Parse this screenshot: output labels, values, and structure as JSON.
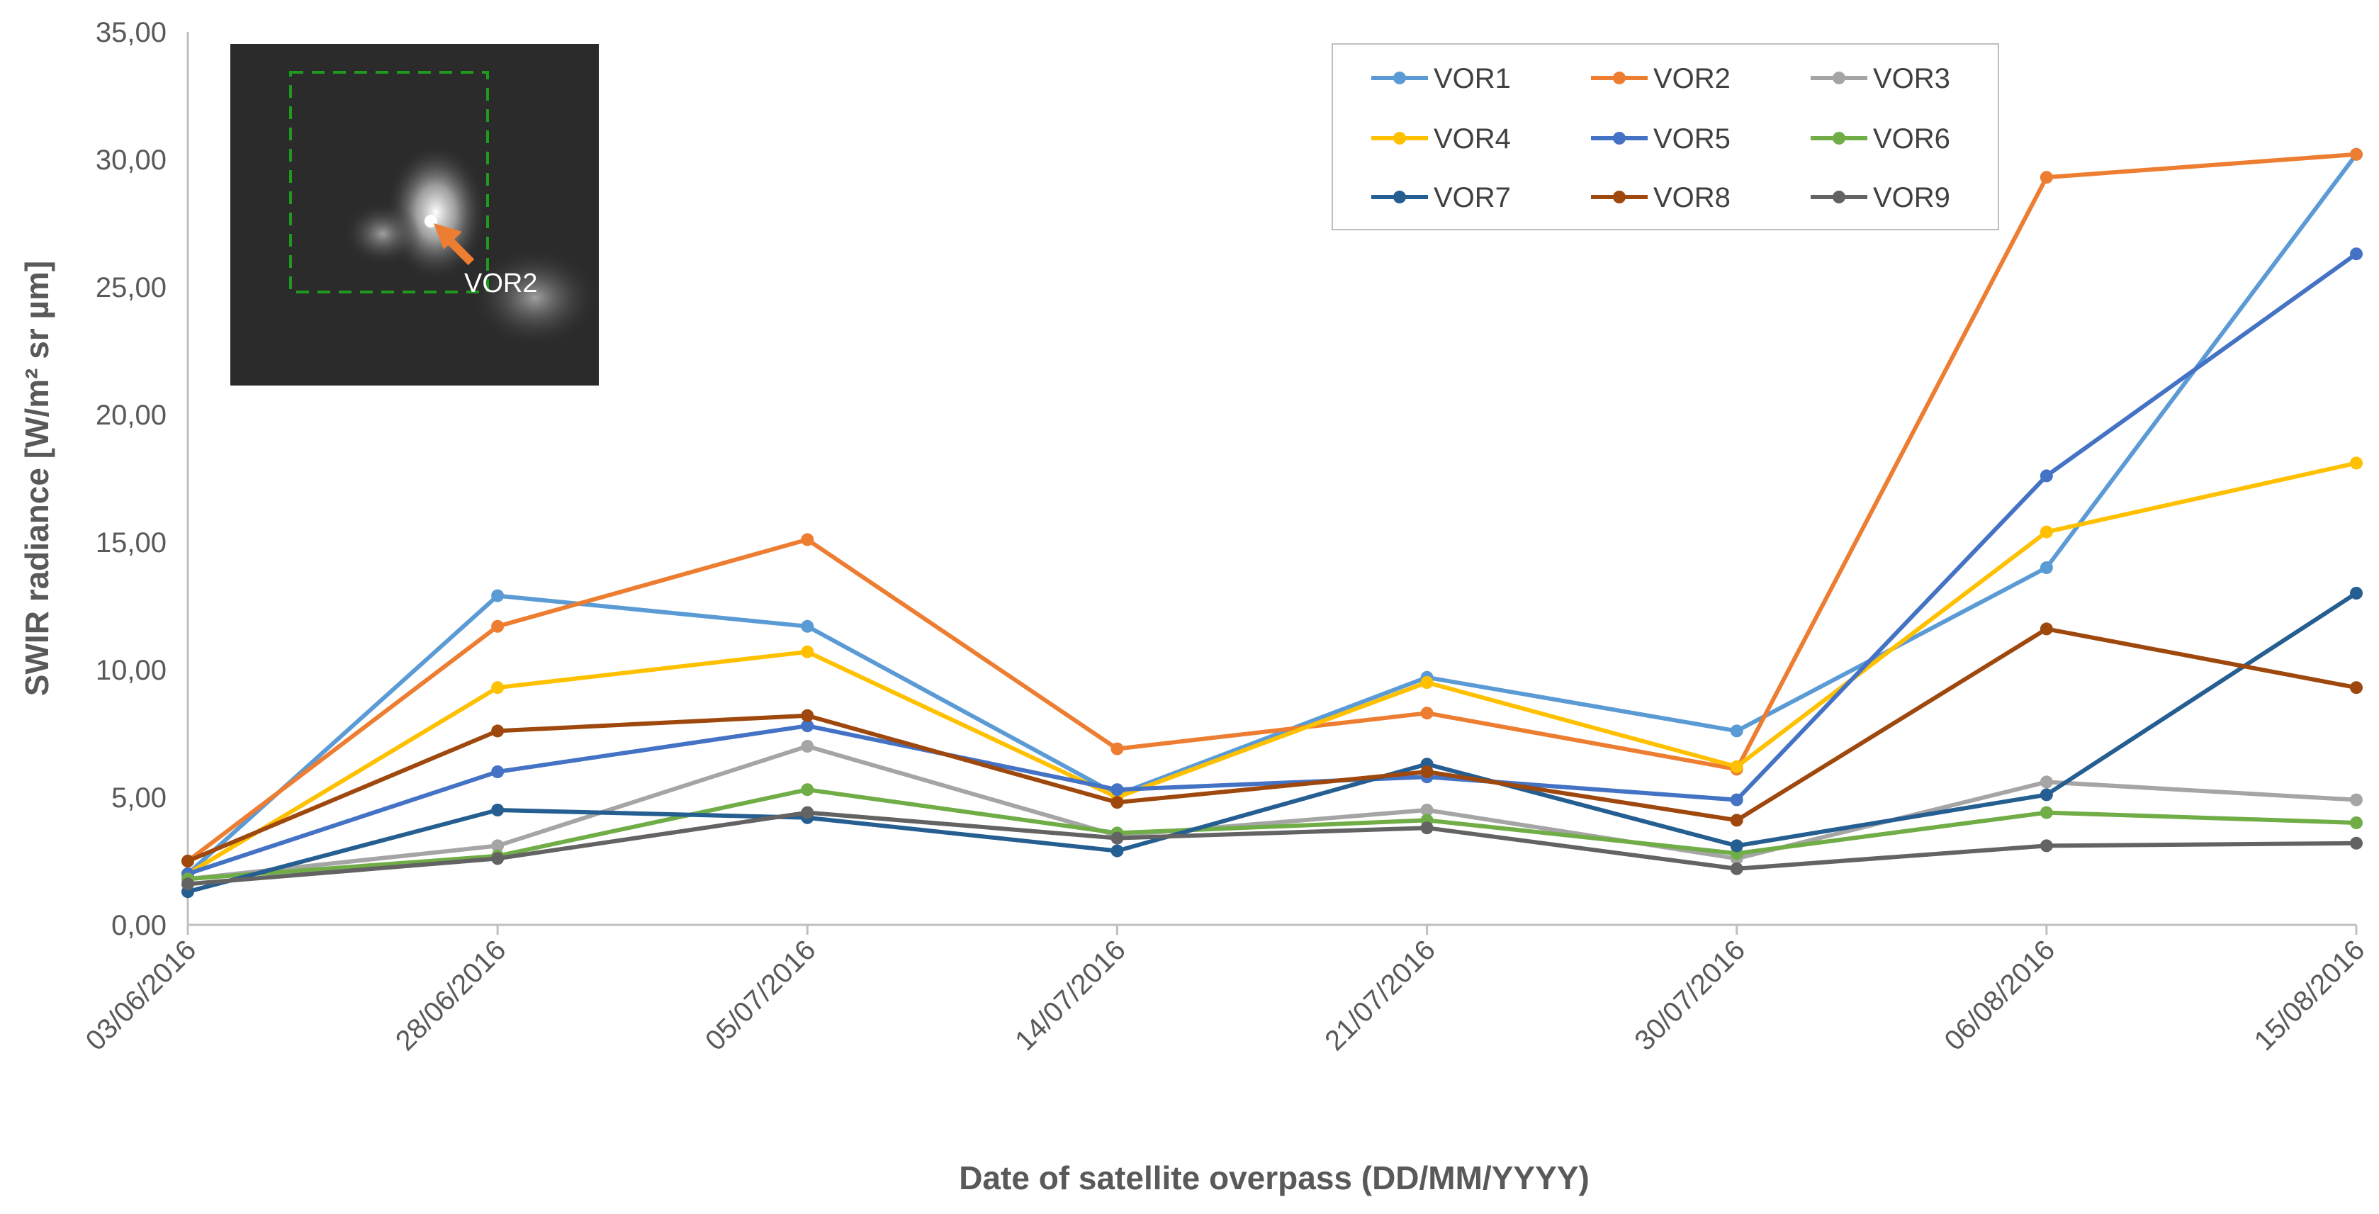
{
  "chart_data": {
    "type": "line",
    "title": "",
    "xlabel": "Date of satellite overpass (DD/MM/YYYY)",
    "ylabel": "SWIR radiance [W/m² sr µm]",
    "categories": [
      "03/06/2016",
      "28/06/2016",
      "05/07/2016",
      "14/07/2016",
      "21/07/2016",
      "30/07/2016",
      "06/08/2016",
      "15/08/2016"
    ],
    "ylim": [
      0,
      35
    ],
    "yticks": [
      "0,00",
      "5,00",
      "10,00",
      "15,00",
      "20,00",
      "25,00",
      "30,00",
      "35,00"
    ],
    "grid": false,
    "legend_position": "top-right",
    "series": [
      {
        "name": "VOR1",
        "color": "#5B9BD5",
        "values": [
          2.0,
          12.9,
          11.7,
          5.1,
          9.7,
          7.6,
          14.0,
          30.2
        ]
      },
      {
        "name": "VOR2",
        "color": "#ED7D31",
        "values": [
          2.5,
          11.7,
          15.1,
          6.9,
          8.3,
          6.1,
          29.3,
          30.2
        ]
      },
      {
        "name": "VOR3",
        "color": "#A5A5A5",
        "values": [
          1.8,
          3.1,
          7.0,
          3.5,
          4.5,
          2.6,
          5.6,
          4.9
        ]
      },
      {
        "name": "VOR4",
        "color": "#FFC000",
        "values": [
          2.0,
          9.3,
          10.7,
          5.0,
          9.5,
          6.2,
          15.4,
          18.1
        ]
      },
      {
        "name": "VOR5",
        "color": "#4472C4",
        "values": [
          2.0,
          6.0,
          7.8,
          5.3,
          5.8,
          4.9,
          17.6,
          26.3
        ]
      },
      {
        "name": "VOR6",
        "color": "#70AD47",
        "values": [
          1.8,
          2.7,
          5.3,
          3.6,
          4.1,
          2.8,
          4.4,
          4.0
        ]
      },
      {
        "name": "VOR7",
        "color": "#255E91",
        "values": [
          1.3,
          4.5,
          4.2,
          2.9,
          6.3,
          3.1,
          5.1,
          13.0
        ]
      },
      {
        "name": "VOR8",
        "color": "#9E480E",
        "values": [
          2.5,
          7.6,
          8.2,
          4.8,
          6.0,
          4.1,
          11.6,
          9.3
        ]
      },
      {
        "name": "VOR9",
        "color": "#636363",
        "values": [
          1.6,
          2.6,
          4.4,
          3.4,
          3.8,
          2.2,
          3.1,
          3.2
        ]
      }
    ],
    "inset": {
      "label": "VOR2",
      "box_color": "#1F9A1F",
      "arrow_color": "#ED7D31"
    }
  }
}
